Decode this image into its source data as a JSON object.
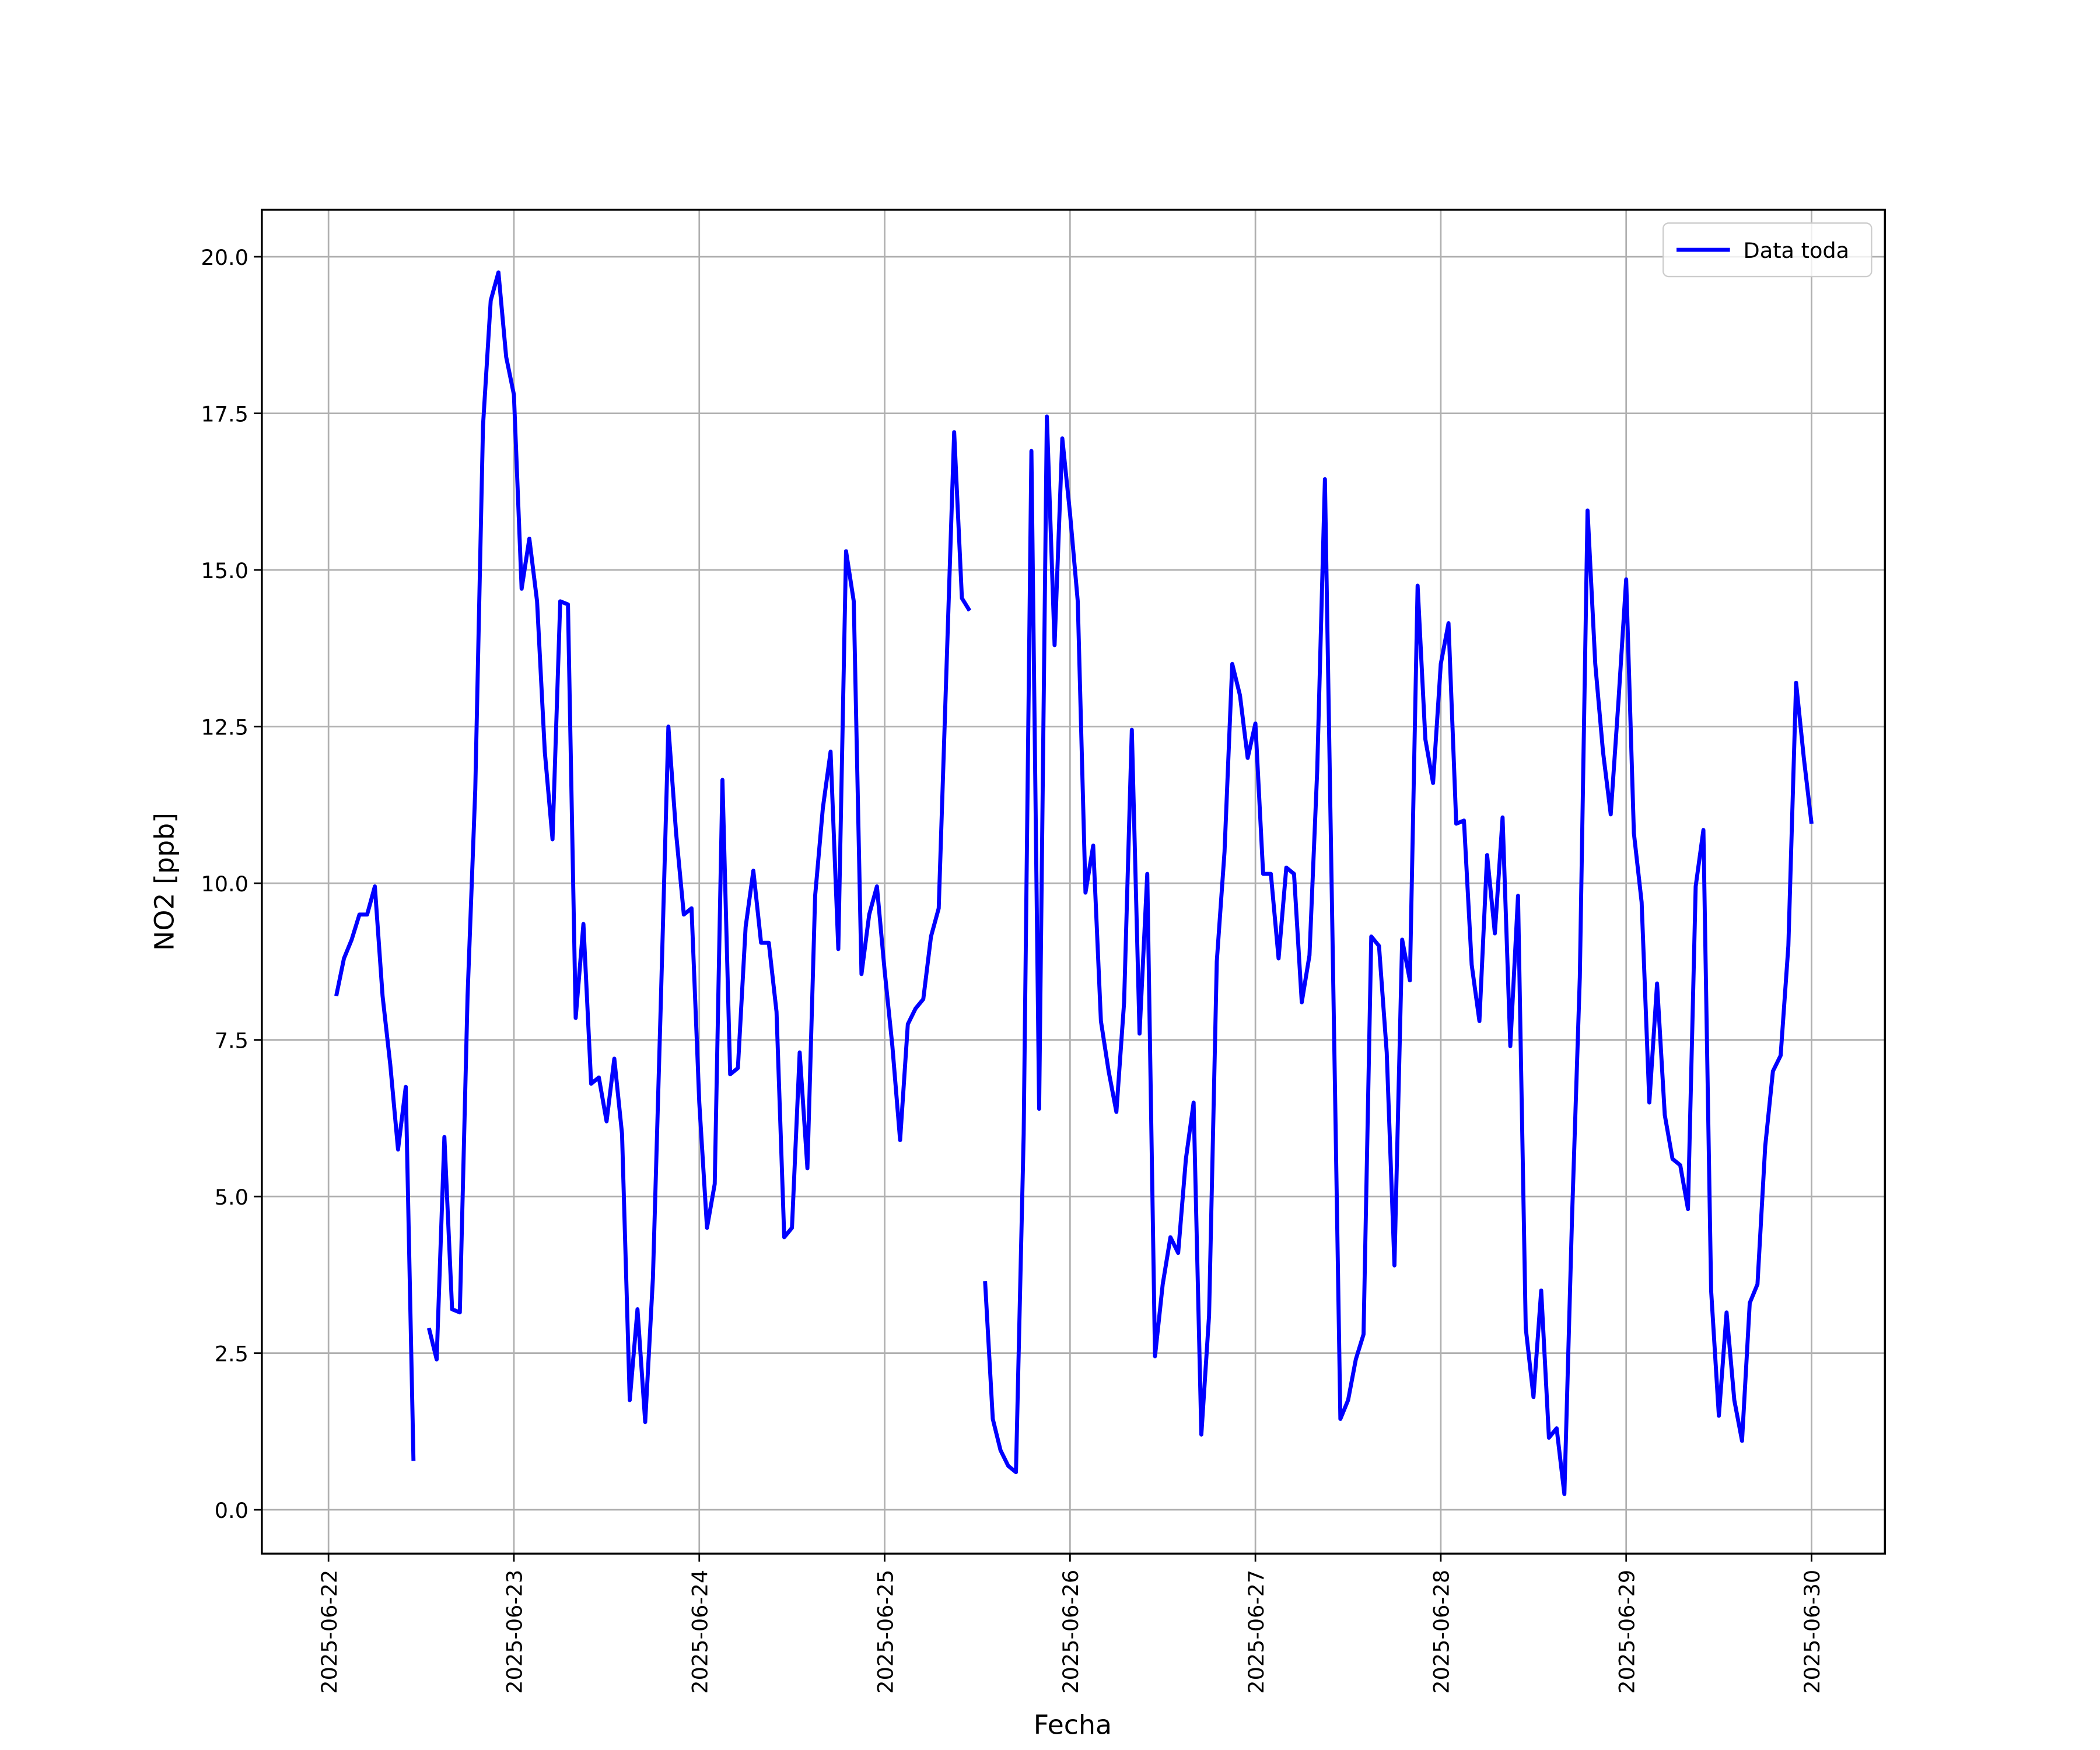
{
  "chart_data": {
    "type": "line",
    "xlabel": "Fecha",
    "ylabel": "NO2 [ppb]",
    "x": [
      "2025-06-22 01:00",
      "2025-06-22 02:00",
      "2025-06-22 03:00",
      "2025-06-22 04:00",
      "2025-06-22 05:00",
      "2025-06-22 06:00",
      "2025-06-22 07:00",
      "2025-06-22 08:00",
      "2025-06-22 09:00",
      "2025-06-22 10:00",
      "2025-06-22 11:00",
      "2025-06-22 12:00",
      "2025-06-22 13:00",
      "2025-06-22 14:00",
      "2025-06-22 15:00",
      "2025-06-22 16:00",
      "2025-06-22 17:00",
      "2025-06-22 18:00",
      "2025-06-22 19:00",
      "2025-06-22 20:00",
      "2025-06-22 21:00",
      "2025-06-22 22:00",
      "2025-06-22 23:00",
      "2025-06-23 00:00",
      "2025-06-23 01:00",
      "2025-06-23 02:00",
      "2025-06-23 03:00",
      "2025-06-23 04:00",
      "2025-06-23 05:00",
      "2025-06-23 06:00",
      "2025-06-23 07:00",
      "2025-06-23 08:00",
      "2025-06-23 09:00",
      "2025-06-23 10:00",
      "2025-06-23 11:00",
      "2025-06-23 12:00",
      "2025-06-23 13:00",
      "2025-06-23 14:00",
      "2025-06-23 15:00",
      "2025-06-23 16:00",
      "2025-06-23 17:00",
      "2025-06-23 18:00",
      "2025-06-23 19:00",
      "2025-06-23 20:00",
      "2025-06-23 21:00",
      "2025-06-23 22:00",
      "2025-06-23 23:00",
      "2025-06-24 00:00",
      "2025-06-24 01:00",
      "2025-06-24 02:00",
      "2025-06-24 03:00",
      "2025-06-24 04:00",
      "2025-06-24 05:00",
      "2025-06-24 06:00",
      "2025-06-24 07:00",
      "2025-06-24 08:00",
      "2025-06-24 09:00",
      "2025-06-24 10:00",
      "2025-06-24 11:00",
      "2025-06-24 12:00",
      "2025-06-24 13:00",
      "2025-06-24 14:00",
      "2025-06-24 15:00",
      "2025-06-24 16:00",
      "2025-06-24 17:00",
      "2025-06-24 18:00",
      "2025-06-24 19:00",
      "2025-06-24 20:00",
      "2025-06-24 21:00",
      "2025-06-24 22:00",
      "2025-06-24 23:00",
      "2025-06-25 00:00",
      "2025-06-25 01:00",
      "2025-06-25 02:00",
      "2025-06-25 03:00",
      "2025-06-25 04:00",
      "2025-06-25 05:00",
      "2025-06-25 06:00",
      "2025-06-25 07:00",
      "2025-06-25 08:00",
      "2025-06-25 09:00",
      "2025-06-25 10:00",
      "2025-06-25 11:00",
      "2025-06-25 12:00",
      "2025-06-25 13:00",
      "2025-06-25 14:00",
      "2025-06-25 15:00",
      "2025-06-25 16:00",
      "2025-06-25 17:00",
      "2025-06-25 18:00",
      "2025-06-25 19:00",
      "2025-06-25 20:00",
      "2025-06-25 21:00",
      "2025-06-25 22:00",
      "2025-06-25 23:00",
      "2025-06-26 00:00",
      "2025-06-26 01:00",
      "2025-06-26 02:00",
      "2025-06-26 03:00",
      "2025-06-26 04:00",
      "2025-06-26 05:00",
      "2025-06-26 06:00",
      "2025-06-26 07:00",
      "2025-06-26 08:00",
      "2025-06-26 09:00",
      "2025-06-26 10:00",
      "2025-06-26 11:00",
      "2025-06-26 12:00",
      "2025-06-26 13:00",
      "2025-06-26 14:00",
      "2025-06-26 15:00",
      "2025-06-26 16:00",
      "2025-06-26 17:00",
      "2025-06-26 18:00",
      "2025-06-26 19:00",
      "2025-06-26 20:00",
      "2025-06-26 21:00",
      "2025-06-26 22:00",
      "2025-06-26 23:00",
      "2025-06-27 00:00",
      "2025-06-27 01:00",
      "2025-06-27 02:00",
      "2025-06-27 03:00",
      "2025-06-27 04:00",
      "2025-06-27 05:00",
      "2025-06-27 06:00",
      "2025-06-27 07:00",
      "2025-06-27 08:00",
      "2025-06-27 09:00",
      "2025-06-27 10:00",
      "2025-06-27 11:00",
      "2025-06-27 12:00",
      "2025-06-27 13:00",
      "2025-06-27 14:00",
      "2025-06-27 15:00",
      "2025-06-27 16:00",
      "2025-06-27 17:00",
      "2025-06-27 18:00",
      "2025-06-27 19:00",
      "2025-06-27 20:00",
      "2025-06-27 21:00",
      "2025-06-27 22:00",
      "2025-06-27 23:00",
      "2025-06-28 00:00",
      "2025-06-28 01:00",
      "2025-06-28 02:00",
      "2025-06-28 03:00",
      "2025-06-28 04:00",
      "2025-06-28 05:00",
      "2025-06-28 06:00",
      "2025-06-28 07:00",
      "2025-06-28 08:00",
      "2025-06-28 09:00",
      "2025-06-28 10:00",
      "2025-06-28 11:00",
      "2025-06-28 12:00",
      "2025-06-28 13:00",
      "2025-06-28 14:00",
      "2025-06-28 15:00",
      "2025-06-28 16:00",
      "2025-06-28 17:00",
      "2025-06-28 18:00",
      "2025-06-28 19:00",
      "2025-06-28 20:00",
      "2025-06-28 21:00",
      "2025-06-28 22:00",
      "2025-06-28 23:00",
      "2025-06-29 00:00",
      "2025-06-29 01:00",
      "2025-06-29 02:00",
      "2025-06-29 03:00",
      "2025-06-29 04:00",
      "2025-06-29 05:00",
      "2025-06-29 06:00",
      "2025-06-29 07:00",
      "2025-06-29 08:00",
      "2025-06-29 09:00",
      "2025-06-29 10:00",
      "2025-06-29 11:00",
      "2025-06-29 12:00",
      "2025-06-29 13:00",
      "2025-06-29 14:00",
      "2025-06-29 15:00",
      "2025-06-29 16:00",
      "2025-06-29 17:00",
      "2025-06-29 18:00",
      "2025-06-29 19:00",
      "2025-06-29 20:00",
      "2025-06-29 21:00",
      "2025-06-29 22:00",
      "2025-06-29 23:00",
      "2025-06-30 00:00"
    ],
    "series": [
      {
        "name": "Data toda",
        "color": "#0000ff",
        "values": [
          8.2,
          8.8,
          9.1,
          9.5,
          9.5,
          9.95,
          8.2,
          7.1,
          5.75,
          6.75,
          0.78,
          null,
          2.9,
          2.4,
          5.95,
          3.2,
          3.15,
          8.2,
          11.5,
          17.3,
          19.3,
          19.75,
          18.4,
          17.8,
          14.7,
          15.5,
          14.5,
          12.1,
          10.7,
          14.5,
          14.45,
          7.85,
          9.35,
          6.8,
          6.9,
          6.2,
          7.2,
          6.0,
          1.75,
          3.2,
          1.4,
          3.7,
          8.0,
          12.5,
          10.8,
          9.5,
          9.6,
          6.5,
          4.5,
          5.2,
          11.65,
          6.95,
          7.05,
          9.3,
          10.2,
          9.05,
          9.05,
          7.95,
          4.35,
          4.5,
          7.3,
          5.45,
          9.8,
          11.2,
          12.1,
          8.95,
          15.3,
          14.5,
          8.55,
          9.5,
          9.95,
          8.6,
          7.4,
          5.9,
          7.75,
          8.0,
          8.15,
          9.15,
          9.6,
          13.4,
          17.2,
          14.55,
          14.35,
          null,
          3.65,
          1.45,
          0.95,
          0.7,
          0.6,
          6.0,
          16.9,
          6.4,
          17.45,
          13.8,
          17.1,
          15.9,
          14.5,
          9.85,
          10.6,
          7.8,
          7.0,
          6.35,
          8.1,
          12.45,
          7.6,
          10.15,
          2.45,
          3.6,
          4.35,
          4.1,
          5.6,
          6.5,
          1.2,
          3.1,
          8.75,
          10.5,
          13.5,
          13.0,
          12.0,
          12.55,
          10.15,
          10.15,
          8.8,
          10.25,
          10.15,
          8.1,
          8.85,
          11.8,
          16.45,
          9.0,
          1.45,
          1.75,
          2.4,
          2.8,
          9.15,
          9.0,
          7.3,
          3.9,
          9.1,
          8.45,
          14.75,
          12.3,
          11.6,
          13.5,
          14.15,
          10.95,
          11.0,
          8.7,
          7.8,
          10.45,
          9.2,
          11.05,
          7.4,
          9.8,
          2.9,
          1.8,
          3.5,
          1.15,
          1.3,
          0.25,
          4.7,
          8.5,
          15.95,
          13.5,
          12.1,
          11.1,
          12.9,
          14.85,
          10.8,
          9.7,
          6.5,
          8.4,
          6.3,
          5.6,
          5.5,
          4.8,
          9.95,
          10.85,
          3.5,
          1.5,
          3.15,
          1.75,
          1.1,
          3.3,
          3.6,
          5.8,
          7.0,
          7.25,
          9.0,
          13.2,
          12.0,
          10.95
        ]
      }
    ],
    "xlim": [
      "2025-06-21 15:22",
      "2025-06-30 09:30"
    ],
    "xticks": [
      "2025-06-22",
      "2025-06-23",
      "2025-06-24",
      "2025-06-25",
      "2025-06-26",
      "2025-06-27",
      "2025-06-28",
      "2025-06-29",
      "2025-06-30"
    ],
    "ylim": [
      -0.7,
      20.75
    ],
    "yticks": [
      {
        "value": 0,
        "label": "0.0"
      },
      2.5,
      {
        "value": 5,
        "label": "5.0"
      },
      7.5,
      {
        "value": 10,
        "label": "10.0"
      },
      12.5,
      {
        "value": 15,
        "label": "15.0"
      },
      17.5,
      {
        "value": 20,
        "label": "20.0"
      }
    ],
    "grid": true,
    "legend": "upper right"
  }
}
